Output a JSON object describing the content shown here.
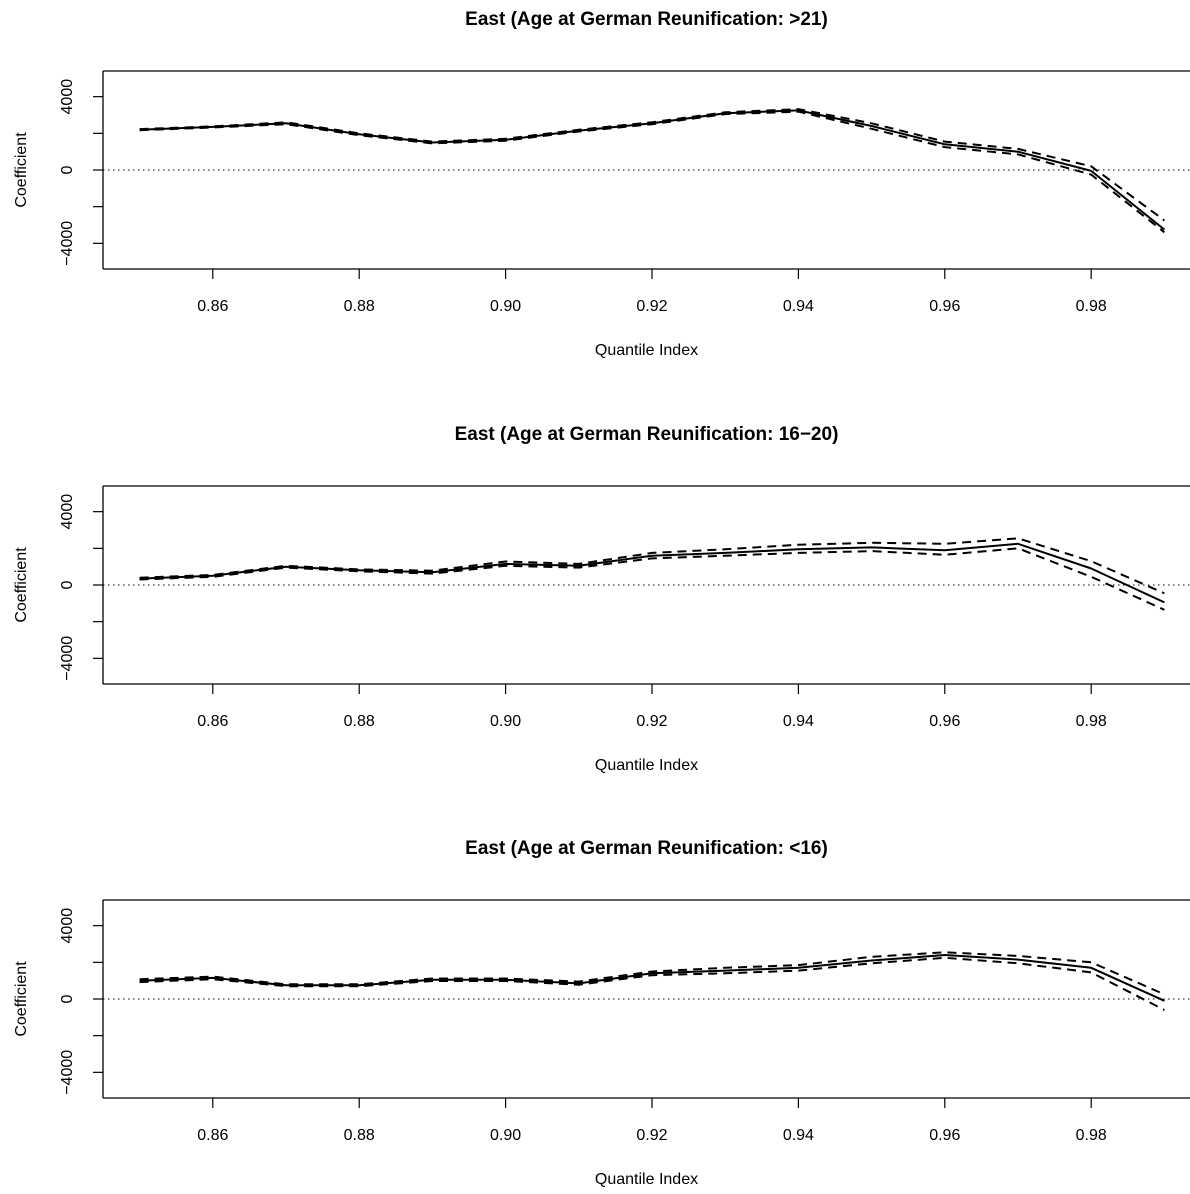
{
  "chart_data": [
    {
      "type": "line",
      "title": "East (Age at German Reunification: >21)",
      "xlabel": "Quantile Index",
      "ylabel": "Coefficient",
      "xlim": [
        0.845,
        0.9935
      ],
      "ylim": [
        -5400,
        5400
      ],
      "x_ticks": [
        "0.86",
        "0.88",
        "0.90",
        "0.92",
        "0.94",
        "0.96",
        "0.98"
      ],
      "y_ticks": [
        "-4000",
        "0",
        "4000"
      ],
      "reference_line": 0,
      "x": [
        0.85,
        0.86,
        0.87,
        0.88,
        0.89,
        0.9,
        0.91,
        0.92,
        0.93,
        0.94,
        0.95,
        0.96,
        0.97,
        0.98,
        0.99
      ],
      "series": [
        {
          "role": "estimate",
          "style": "solid",
          "values": [
            2200,
            2350,
            2550,
            1950,
            1500,
            1650,
            2150,
            2550,
            3100,
            3250,
            2400,
            1400,
            1000,
            -50,
            -3250
          ]
        },
        {
          "role": "upper",
          "style": "dashed",
          "values": [
            2230,
            2380,
            2600,
            2000,
            1550,
            1700,
            2200,
            2600,
            3150,
            3320,
            2550,
            1550,
            1150,
            200,
            -2750
          ]
        },
        {
          "role": "lower",
          "style": "dashed",
          "values": [
            2170,
            2320,
            2500,
            1900,
            1450,
            1600,
            2100,
            2500,
            3050,
            3180,
            2250,
            1250,
            850,
            -250,
            -3400
          ]
        }
      ]
    },
    {
      "type": "line",
      "title": "East (Age at German Reunification: 16−20)",
      "xlabel": "Quantile Index",
      "ylabel": "Coefficient",
      "xlim": [
        0.845,
        0.9935
      ],
      "ylim": [
        -5400,
        5400
      ],
      "x_ticks": [
        "0.86",
        "0.88",
        "0.90",
        "0.92",
        "0.94",
        "0.96",
        "0.98"
      ],
      "y_ticks": [
        "-4000",
        "0",
        "4000"
      ],
      "reference_line": 0,
      "x": [
        0.85,
        0.86,
        0.87,
        0.88,
        0.89,
        0.9,
        0.91,
        0.92,
        0.93,
        0.94,
        0.95,
        0.96,
        0.97,
        0.98,
        0.99
      ],
      "series": [
        {
          "role": "estimate",
          "style": "solid",
          "values": [
            350,
            500,
            1000,
            800,
            700,
            1150,
            1050,
            1600,
            1750,
            1950,
            2050,
            1900,
            2250,
            900,
            -950
          ]
        },
        {
          "role": "upper",
          "style": "dashed",
          "values": [
            400,
            550,
            1050,
            850,
            780,
            1280,
            1150,
            1750,
            1950,
            2200,
            2300,
            2250,
            2550,
            1300,
            -450
          ]
        },
        {
          "role": "lower",
          "style": "dashed",
          "values": [
            300,
            450,
            950,
            750,
            620,
            1050,
            950,
            1450,
            1600,
            1750,
            1850,
            1650,
            2000,
            450,
            -1350
          ]
        }
      ]
    },
    {
      "type": "line",
      "title": "East (Age at German Reunification: <16)",
      "xlabel": "Quantile Index",
      "ylabel": "Coefficient",
      "xlim": [
        0.845,
        0.9935
      ],
      "ylim": [
        -5400,
        5400
      ],
      "x_ticks": [
        "0.86",
        "0.88",
        "0.90",
        "0.92",
        "0.94",
        "0.96",
        "0.98"
      ],
      "y_ticks": [
        "-4000",
        "0",
        "4000"
      ],
      "reference_line": 0,
      "x": [
        0.85,
        0.86,
        0.87,
        0.88,
        0.89,
        0.9,
        0.91,
        0.92,
        0.93,
        0.94,
        0.95,
        0.96,
        0.97,
        0.98,
        0.99
      ],
      "series": [
        {
          "role": "estimate",
          "style": "solid",
          "values": [
            1000,
            1150,
            750,
            750,
            1050,
            1050,
            850,
            1400,
            1550,
            1700,
            2100,
            2400,
            2150,
            1700,
            -100
          ]
        },
        {
          "role": "upper",
          "style": "dashed",
          "values": [
            1080,
            1220,
            800,
            800,
            1120,
            1120,
            950,
            1500,
            1700,
            1850,
            2300,
            2550,
            2350,
            2000,
            250
          ]
        },
        {
          "role": "lower",
          "style": "dashed",
          "values": [
            920,
            1080,
            700,
            700,
            980,
            980,
            780,
            1300,
            1400,
            1550,
            1950,
            2250,
            1950,
            1450,
            -600
          ]
        }
      ]
    }
  ]
}
